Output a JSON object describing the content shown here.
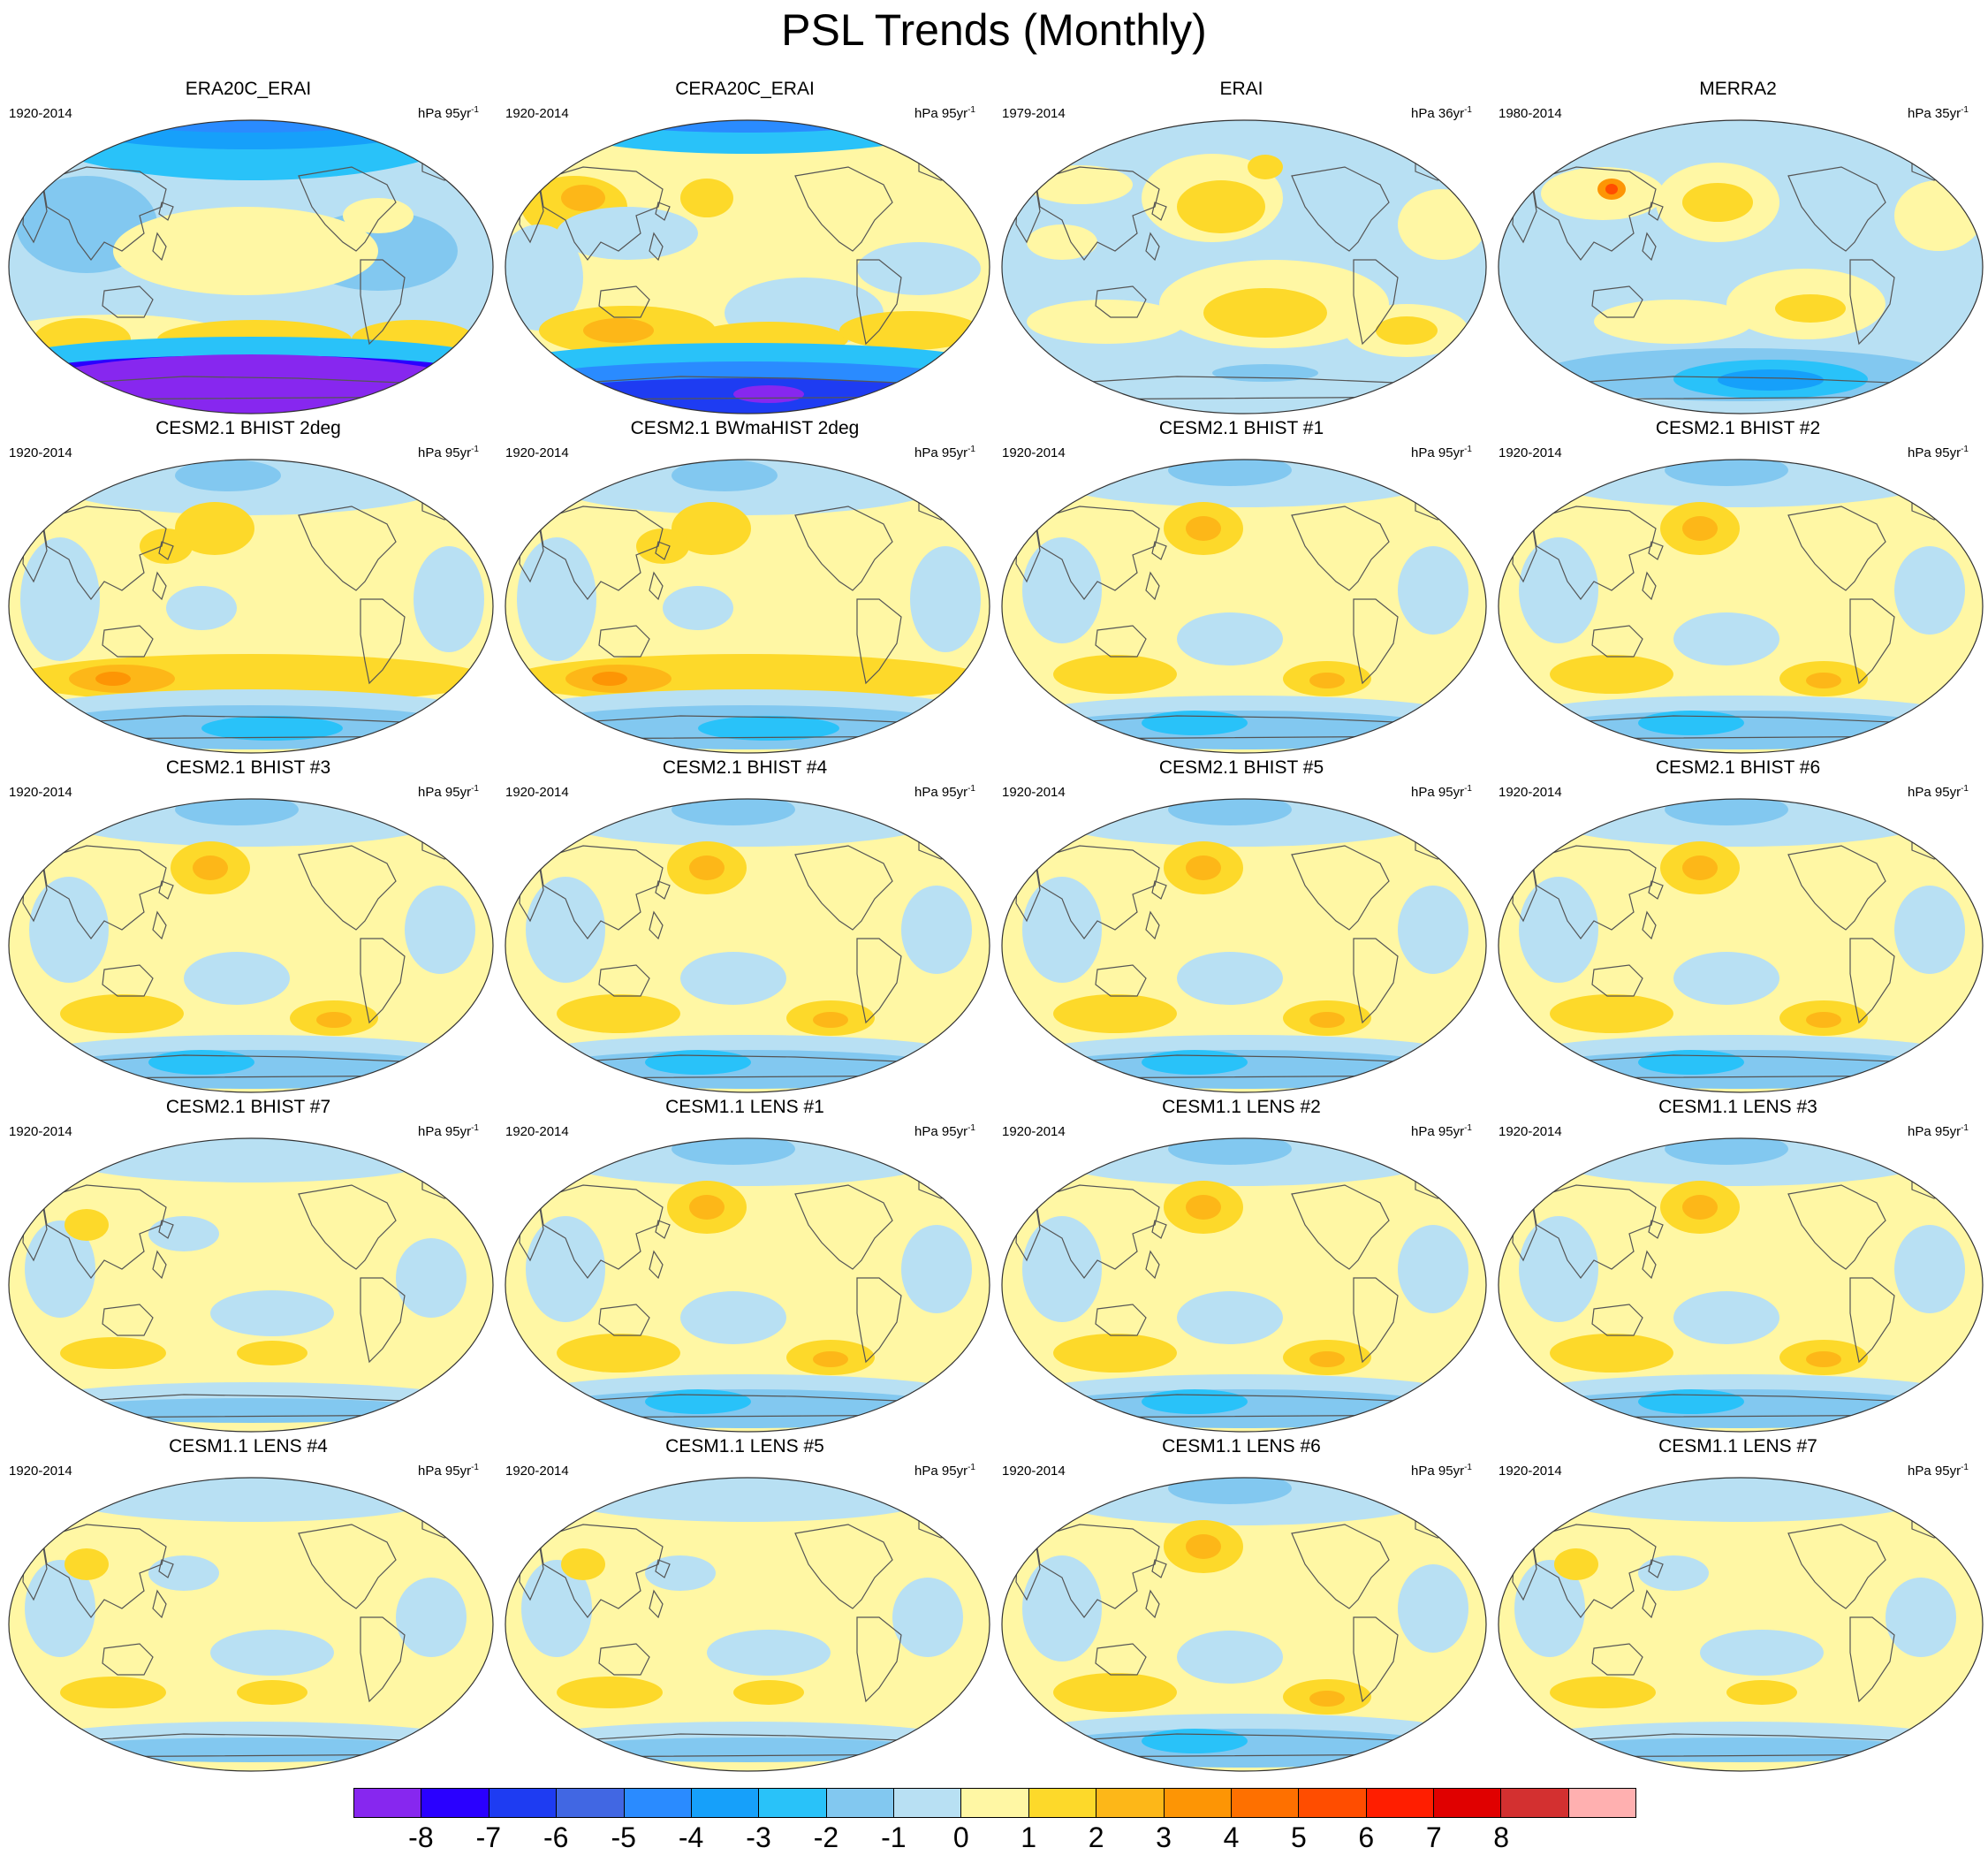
{
  "title": "PSL Trends (Monthly)",
  "colors": {
    "negative": [
      "#8727ef",
      "#2a00ff",
      "#1e3cf2",
      "#4167e3",
      "#2a8bff",
      "#16a0fa",
      "#29c2f9",
      "#82c8f0",
      "#b8e0f3"
    ],
    "positive": [
      "#fff7a4",
      "#fdd92a",
      "#fdb718",
      "#fd9505",
      "#fe7000",
      "#ff4d00",
      "#ff1e00",
      "#e00000",
      "#d33030",
      "#ffb0b0"
    ],
    "land_outline": "#555555",
    "border": "#333333"
  },
  "colorbar": {
    "labels": [
      "-8",
      "-7",
      "-6",
      "-5",
      "-4",
      "-3",
      "-2",
      "-1",
      "0",
      "1",
      "2",
      "3",
      "4",
      "5",
      "6",
      "7",
      "8"
    ],
    "colors": [
      "#8727ef",
      "#2a00ff",
      "#1e3cf2",
      "#4167e3",
      "#2a8bff",
      "#16a0fa",
      "#29c2f9",
      "#82c8f0",
      "#b8e0f3",
      "#fff7a4",
      "#fdd92a",
      "#fdb718",
      "#fd9505",
      "#fe7000",
      "#ff4d00",
      "#ff1e00",
      "#e00000",
      "#d33030",
      "#ffb0b0"
    ]
  },
  "panels": [
    {
      "title": "ERA20C_ERAI",
      "period": "1920-2014",
      "units": "hPa 95yr",
      "units_exp": "-1",
      "pattern": "era20c"
    },
    {
      "title": "CERA20C_ERAI",
      "period": "1920-2014",
      "units": "hPa 95yr",
      "units_exp": "-1",
      "pattern": "cera20c"
    },
    {
      "title": "ERAI",
      "period": "1979-2014",
      "units": "hPa 36yr",
      "units_exp": "-1",
      "pattern": "erai"
    },
    {
      "title": "MERRA2",
      "period": "1980-2014",
      "units": "hPa 35yr",
      "units_exp": "-1",
      "pattern": "merra2"
    },
    {
      "title": "CESM2.1 BHIST 2deg",
      "period": "1920-2014",
      "units": "hPa 95yr",
      "units_exp": "-1",
      "pattern": "strong"
    },
    {
      "title": "CESM2.1 BWmaHIST 2deg",
      "period": "1920-2014",
      "units": "hPa 95yr",
      "units_exp": "-1",
      "pattern": "strong"
    },
    {
      "title": "CESM2.1 BHIST #1",
      "period": "1920-2014",
      "units": "hPa 95yr",
      "units_exp": "-1",
      "pattern": "model"
    },
    {
      "title": "CESM2.1 BHIST #2",
      "period": "1920-2014",
      "units": "hPa 95yr",
      "units_exp": "-1",
      "pattern": "model"
    },
    {
      "title": "CESM2.1 BHIST #3",
      "period": "1920-2014",
      "units": "hPa 95yr",
      "units_exp": "-1",
      "pattern": "model"
    },
    {
      "title": "CESM2.1 BHIST #4",
      "period": "1920-2014",
      "units": "hPa 95yr",
      "units_exp": "-1",
      "pattern": "model"
    },
    {
      "title": "CESM2.1 BHIST #5",
      "period": "1920-2014",
      "units": "hPa 95yr",
      "units_exp": "-1",
      "pattern": "model"
    },
    {
      "title": "CESM2.1 BHIST #6",
      "period": "1920-2014",
      "units": "hPa 95yr",
      "units_exp": "-1",
      "pattern": "model"
    },
    {
      "title": "CESM2.1 BHIST #7",
      "period": "1920-2014",
      "units": "hPa 95yr",
      "units_exp": "-1",
      "pattern": "weak"
    },
    {
      "title": "CESM1.1 LENS #1",
      "period": "1920-2014",
      "units": "hPa 95yr",
      "units_exp": "-1",
      "pattern": "model"
    },
    {
      "title": "CESM1.1 LENS #2",
      "period": "1920-2014",
      "units": "hPa 95yr",
      "units_exp": "-1",
      "pattern": "model"
    },
    {
      "title": "CESM1.1 LENS #3",
      "period": "1920-2014",
      "units": "hPa 95yr",
      "units_exp": "-1",
      "pattern": "model"
    },
    {
      "title": "CESM1.1 LENS #4",
      "period": "1920-2014",
      "units": "hPa 95yr",
      "units_exp": "-1",
      "pattern": "weak"
    },
    {
      "title": "CESM1.1 LENS #5",
      "period": "1920-2014",
      "units": "hPa 95yr",
      "units_exp": "-1",
      "pattern": "weak"
    },
    {
      "title": "CESM1.1 LENS #6",
      "period": "1920-2014",
      "units": "hPa 95yr",
      "units_exp": "-1",
      "pattern": "model"
    },
    {
      "title": "CESM1.1 LENS #7",
      "period": "1920-2014",
      "units": "hPa 95yr",
      "units_exp": "-1",
      "pattern": "weak"
    }
  ]
}
